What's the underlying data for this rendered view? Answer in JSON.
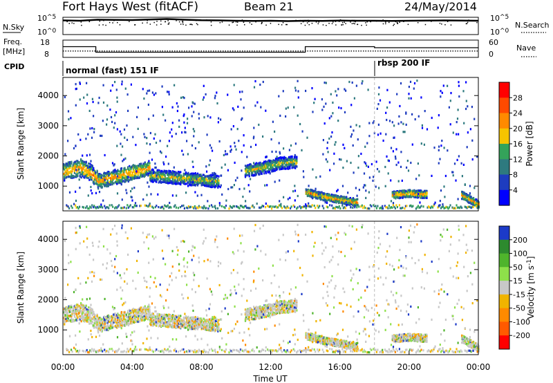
{
  "header": {
    "station": "Fort Hays West (fitACF)",
    "beam": "Beam 21",
    "date": "24/May/2014"
  },
  "chart_data": [
    {
      "type": "line",
      "panel": "noise",
      "left_label": "N.Sky",
      "right_label": "N.Search",
      "left_ticks": [
        {
          "base": "10",
          "exp": "^5"
        },
        {
          "base": "10",
          "exp": "^0"
        }
      ],
      "right_ticks": [
        {
          "base": "10",
          "exp": "^5"
        },
        {
          "base": "10",
          "exp": "^0"
        }
      ],
      "xlim": [
        0,
        24
      ],
      "series": [
        {
          "x": [
            0,
            1,
            2,
            3,
            4,
            5,
            6,
            7,
            8,
            9,
            10,
            11,
            12,
            13,
            14,
            15,
            16,
            17,
            18,
            19,
            20,
            21,
            22,
            23,
            24
          ],
          "values": [
            0.82,
            0.8,
            0.86,
            0.85,
            0.84,
            0.87,
            0.9,
            0.86,
            0.83,
            0.82,
            0.8,
            0.79,
            0.8,
            0.78,
            0.8,
            0.79,
            0.81,
            0.8,
            0.8,
            0.79,
            0.8,
            0.81,
            0.82,
            0.81,
            0.8
          ]
        }
      ]
    },
    {
      "type": "line",
      "panel": "frequency",
      "left_label_1": "Freq.",
      "left_label_2": "[MHz]",
      "right_label": "Nave",
      "left_ticks": [
        "18",
        "8"
      ],
      "right_ticks": [
        "60",
        "0"
      ],
      "xlim": [
        0,
        24
      ],
      "freq_steps": [
        {
          "x0": 0,
          "x1": 1.9,
          "value": 14.2
        },
        {
          "x0": 1.9,
          "x1": 14.0,
          "value": 11.0
        },
        {
          "x0": 14.0,
          "x1": 18.0,
          "value": 14.2
        },
        {
          "x0": 18.0,
          "x1": 24,
          "value": 13.6
        }
      ],
      "nave_value": 22
    },
    {
      "type": "heatmap",
      "panel": "cpid",
      "label": "CPID",
      "modes": [
        {
          "x0": 0,
          "x1": 18.0,
          "label": "normal (fast) 151 IF"
        },
        {
          "x0": 18.0,
          "x1": 24,
          "label": "rbsp 200 IF"
        }
      ]
    },
    {
      "type": "heatmap",
      "panel": "power",
      "ylabel": "Slant Range [km]",
      "yticks": [
        "1000",
        "2000",
        "3000",
        "4000"
      ],
      "ytick_values": [
        1000,
        2000,
        3000,
        4000
      ],
      "ylim": [
        180,
        4600
      ],
      "xlim": [
        0,
        24
      ],
      "colorbar": {
        "label": "Power [dB]",
        "ticks": [
          "4",
          "8",
          "12",
          "16",
          "20",
          "24",
          "28"
        ],
        "colors": [
          "#0000ff",
          "#1e3cbf",
          "#2e7a7f",
          "#34a35a",
          "#f6c400",
          "#ff8a00",
          "#ff4a00",
          "#ff0000"
        ]
      },
      "echo_bands": [
        {
          "times": [
            0,
            0.5,
            1.0,
            1.5,
            2.0
          ],
          "range": [
            1450,
            1550,
            1600,
            1480,
            1200
          ],
          "width": 350,
          "level": 5
        },
        {
          "times": [
            2.0,
            3.0,
            4.0,
            5.0
          ],
          "range": [
            1150,
            1300,
            1450,
            1600
          ],
          "width": 300,
          "level": 5
        },
        {
          "times": [
            5.0,
            6.0,
            7.0,
            8.0,
            9.0
          ],
          "range": [
            1350,
            1300,
            1250,
            1200,
            1150
          ],
          "width": 260,
          "level": 4
        },
        {
          "times": [
            10.5,
            11.5,
            12.5,
            13.5
          ],
          "range": [
            1500,
            1600,
            1750,
            1800
          ],
          "width": 250,
          "level": 4
        },
        {
          "times": [
            14.0,
            15.0,
            16.0,
            17.0
          ],
          "range": [
            800,
            650,
            550,
            450
          ],
          "width": 150,
          "level": 5
        },
        {
          "times": [
            19.0,
            20.0,
            21.0
          ],
          "range": [
            700,
            750,
            720
          ],
          "width": 150,
          "level": 5
        },
        {
          "times": [
            23.0,
            23.5,
            24.0
          ],
          "range": [
            700,
            550,
            380
          ],
          "width": 160,
          "level": 5
        }
      ]
    },
    {
      "type": "heatmap",
      "panel": "velocity",
      "ylabel": "Slant Range [km]",
      "yticks": [
        "1000",
        "2000",
        "3000",
        "4000"
      ],
      "ytick_values": [
        1000,
        2000,
        3000,
        4000
      ],
      "ylim": [
        180,
        4600
      ],
      "xlim": [
        0,
        24
      ],
      "xticks": [
        "00:00",
        "04:00",
        "08:00",
        "12:00",
        "16:00",
        "20:00",
        "00:00"
      ],
      "xtick_values": [
        0,
        4,
        8,
        12,
        16,
        20,
        24
      ],
      "xlabel": "Time UT",
      "colorbar": {
        "label_main": "Velocity [m s",
        "label_sup": "-1",
        "label_end": "]",
        "ticks": [
          "200",
          "100",
          "50",
          "15",
          "-15",
          "-50",
          "-100",
          "-200"
        ],
        "colors": [
          "#1c3ac8",
          "#2d8a2e",
          "#4fb42c",
          "#8ee04a",
          "#c8c8c8",
          "#f0b400",
          "#ff8a00",
          "#ff5a00",
          "#ff0000"
        ]
      }
    }
  ],
  "divider_time": 18.0
}
